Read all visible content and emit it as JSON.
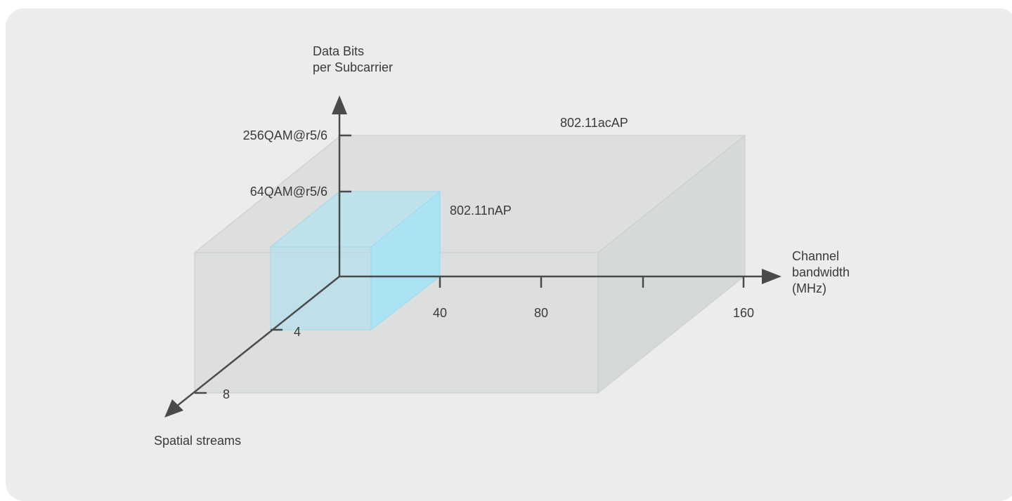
{
  "axes": {
    "y_title": "Data Bits\nper Subcarrier",
    "x_title": "Channel\nbandwidth\n(MHz)",
    "z_title": "Spatial streams"
  },
  "y_ticks": [
    "256QAM@r5/6",
    "64QAM@r5/6"
  ],
  "x_ticks": [
    "40",
    "80",
    "160"
  ],
  "z_ticks": [
    "4",
    "8"
  ],
  "boxes": {
    "ac": {
      "label": "802.11acAP",
      "color": "#d6d9d9"
    },
    "n": {
      "label": "802.11nAP",
      "color": "#a9e0f2"
    }
  },
  "colors": {
    "background": "#ececec",
    "axis": "#4a4a4a",
    "text": "#3a3a3a"
  }
}
